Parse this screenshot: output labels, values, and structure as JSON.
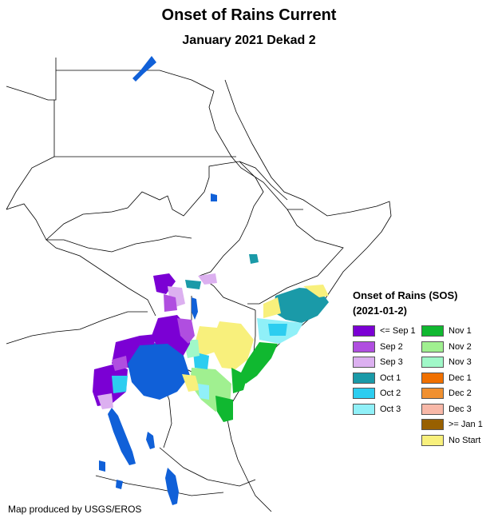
{
  "header": {
    "title": "Onset of Rains Current",
    "subtitle": "January 2021 Dekad 2"
  },
  "legend": {
    "title_line1": "Onset of Rains (SOS)",
    "title_line2": "(2021-01-2)",
    "items": [
      {
        "label": "<= Sep 1",
        "color": "#7b00d4"
      },
      {
        "label": "Sep 2",
        "color": "#b04ee0"
      },
      {
        "label": "Sep 3",
        "color": "#dcb0f0"
      },
      {
        "label": "Oct 1",
        "color": "#1a9aa8"
      },
      {
        "label": "Oct 2",
        "color": "#2ccdf0"
      },
      {
        "label": "Oct 3",
        "color": "#90f0f8"
      },
      {
        "label": "Nov 1",
        "color": "#10b830"
      },
      {
        "label": "Nov 2",
        "color": "#a0f090"
      },
      {
        "label": "Nov 3",
        "color": "#a0f8c8"
      },
      {
        "label": "Dec 1",
        "color": "#f07000"
      },
      {
        "label": "Dec 2",
        "color": "#f09030"
      },
      {
        "label": "Dec 3",
        "color": "#f8b8a8"
      },
      {
        "label": ">= Jan 1",
        "color": "#986000"
      },
      {
        "label": "No Start",
        "color": "#f8f07c"
      }
    ]
  },
  "water_color": "#1060d8",
  "credit": "Map produced by USGS/EROS"
}
